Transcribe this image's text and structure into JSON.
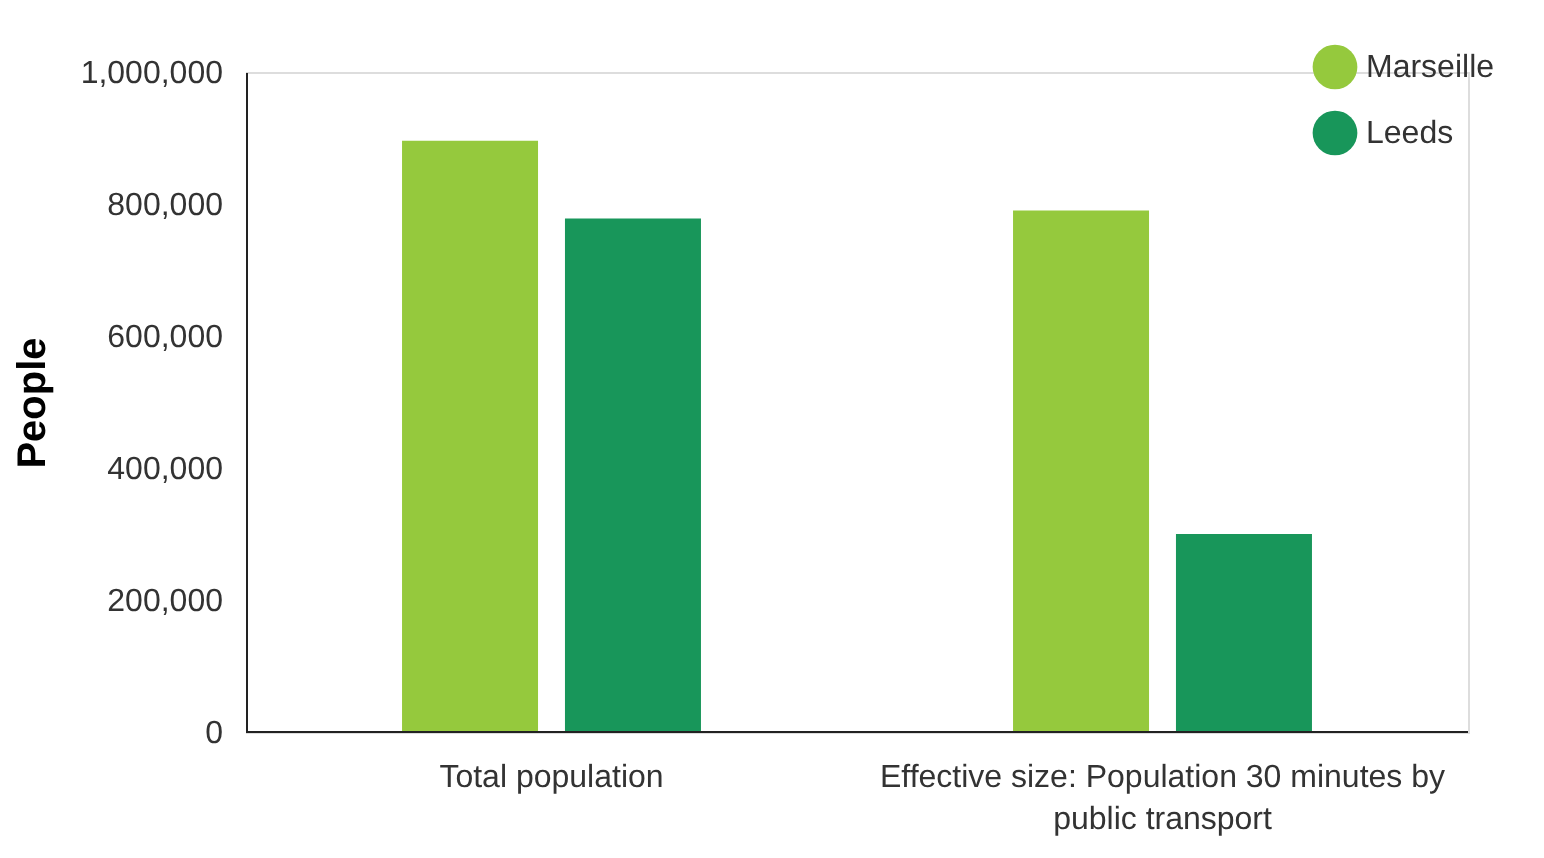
{
  "chart_data": {
    "type": "bar",
    "ylabel": "People",
    "categories": [
      "Total population",
      "Effective size: Population 30 minutes by public transport"
    ],
    "series": [
      {
        "name": "Marseille",
        "color": "#95c93d",
        "values": [
          896000,
          790000
        ]
      },
      {
        "name": "Leeds",
        "color": "#18965a",
        "values": [
          778000,
          300000
        ]
      }
    ],
    "ylim": [
      0,
      1000000
    ],
    "yticks": [
      0,
      {
        "value": 200000,
        "label": "200,000"
      },
      {
        "value": 400000,
        "label": "400,000"
      },
      {
        "value": 600000,
        "label": "600,000"
      },
      {
        "value": 800000,
        "label": "800,000"
      },
      {
        "value": 1000000,
        "label": "1,000,000"
      }
    ],
    "grid": false,
    "legend": "top right"
  }
}
